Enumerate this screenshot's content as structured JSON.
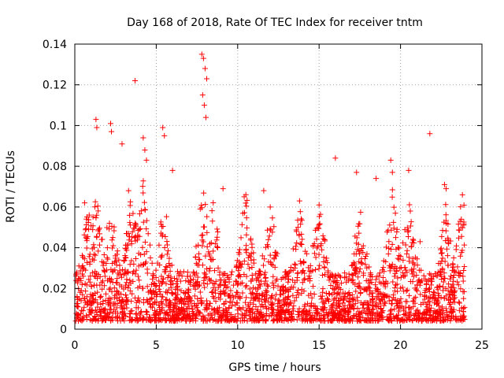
{
  "chart_data": {
    "type": "scatter",
    "title": "Day 168 of 2018, Rate Of TEC Index for receiver tntm",
    "xlabel": "GPS time / hours",
    "ylabel": "ROTI / TECUs",
    "xlim": [
      0,
      25
    ],
    "ylim": [
      0,
      0.14
    ],
    "xticks": [
      0,
      5,
      10,
      15,
      20,
      25
    ],
    "yticks": [
      0,
      0.02,
      0.04,
      0.06,
      0.08,
      0.1,
      0.12,
      0.14
    ],
    "xtick_labels": [
      "0",
      "5",
      "10",
      "15",
      "20",
      "25"
    ],
    "ytick_labels": [
      "0",
      "0.02",
      "0.04",
      "0.06",
      "0.08",
      "0.1",
      "0.12",
      "0.14"
    ],
    "grid": true,
    "marker": "+",
    "color": "#ff0000",
    "series": [
      {
        "name": "ROTI",
        "note": "dense background cloud of ~0.005-0.035 TECUs across 0-24 h plus these prominent peaks",
        "x": [
          3.7,
          7.8,
          7.9,
          8.0,
          8.1,
          7.85,
          7.95,
          8.05,
          1.3,
          1.35,
          2.2,
          2.25,
          5.4,
          5.5,
          21.8,
          4.2,
          4.3,
          4.4,
          19.4,
          19.5,
          16.0,
          20.5,
          20.6,
          22.7,
          22.8,
          17.3,
          18.5,
          23.8,
          13.8,
          11.6,
          12.0,
          6.0,
          10.4,
          9.1,
          2.9,
          0.6,
          3.3,
          15.0,
          21.2
        ],
        "y": [
          0.122,
          0.135,
          0.133,
          0.128,
          0.123,
          0.115,
          0.11,
          0.104,
          0.103,
          0.099,
          0.101,
          0.097,
          0.099,
          0.095,
          0.096,
          0.094,
          0.088,
          0.083,
          0.083,
          0.077,
          0.084,
          0.078,
          0.058,
          0.071,
          0.069,
          0.077,
          0.074,
          0.066,
          0.063,
          0.068,
          0.06,
          0.078,
          0.065,
          0.069,
          0.091,
          0.062,
          0.068,
          0.061,
          0.043
        ]
      }
    ]
  }
}
